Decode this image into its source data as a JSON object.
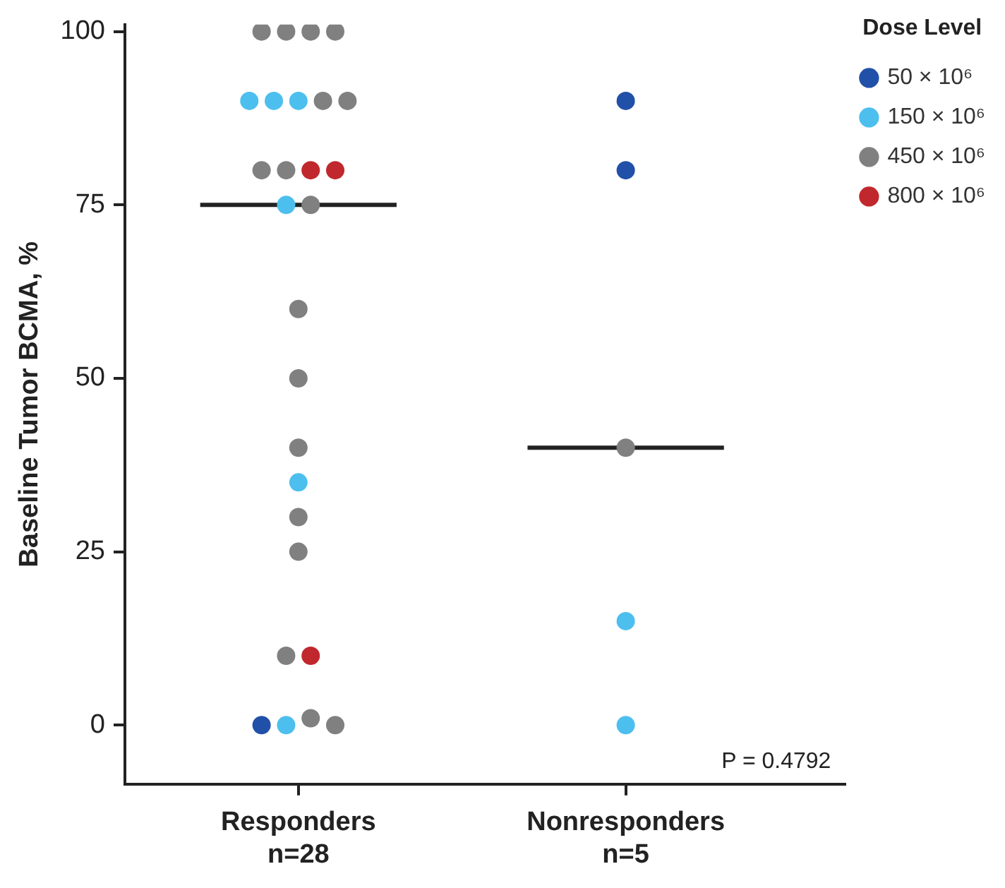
{
  "chart_data": {
    "type": "scatter",
    "ylabel": "Baseline Tumor BCMA, %",
    "legend_title": "Dose Level",
    "legend": "top right",
    "grid": false,
    "marker": "circle",
    "categories": [
      "Responders\nn=28",
      "Nonresponders\nn=5"
    ],
    "ylim": [
      -8.5,
      101
    ],
    "yticks": [
      0,
      25,
      50,
      75,
      100
    ],
    "annotations": [
      "P = 0.4792"
    ],
    "series": [
      {
        "name": "50 × 10⁶",
        "color": "#2150a8",
        "x": [
          "Responders\nn=28",
          "Nonresponders\nn=5",
          "Nonresponders\nn=5"
        ],
        "values": [
          0,
          90,
          80
        ]
      },
      {
        "name": "150 × 10⁶",
        "color": "#4dbfee",
        "x": [
          "Responders\nn=28",
          "Responders\nn=28",
          "Responders\nn=28",
          "Responders\nn=28",
          "Responders\nn=28",
          "Responders\nn=28",
          "Nonresponders\nn=5",
          "Nonresponders\nn=5"
        ],
        "values": [
          90,
          90,
          90,
          75,
          35,
          0,
          15,
          0
        ]
      },
      {
        "name": "450 × 10⁶",
        "color": "#808080",
        "x": [
          "Responders\nn=28",
          "Responders\nn=28",
          "Responders\nn=28",
          "Responders\nn=28",
          "Responders\nn=28",
          "Responders\nn=28",
          "Responders\nn=28",
          "Responders\nn=28",
          "Responders\nn=28",
          "Responders\nn=28",
          "Responders\nn=28",
          "Responders\nn=28",
          "Responders\nn=28",
          "Responders\nn=28",
          "Responders\nn=28",
          "Responders\nn=28",
          "Responders\nn=28",
          "Nonresponders\nn=5"
        ],
        "values": [
          100,
          100,
          100,
          100,
          90,
          90,
          80,
          80,
          75,
          60,
          50,
          40,
          30,
          25,
          10,
          1,
          0,
          40
        ]
      },
      {
        "name": "800 × 10⁶",
        "color": "#c0282e",
        "x": [
          "Responders\nn=28",
          "Responders\nn=28",
          "Responders\nn=28"
        ],
        "values": [
          80,
          80,
          10
        ]
      },
      {
        "type": "box",
        "color": "#222222",
        "boxes": [
          {
            "low": 75,
            "q1": 75,
            "median": 75,
            "q3": 75,
            "high": 75
          },
          {
            "low": 40,
            "q1": 40,
            "median": 40,
            "q3": 40,
            "high": 40
          }
        ]
      }
    ]
  }
}
